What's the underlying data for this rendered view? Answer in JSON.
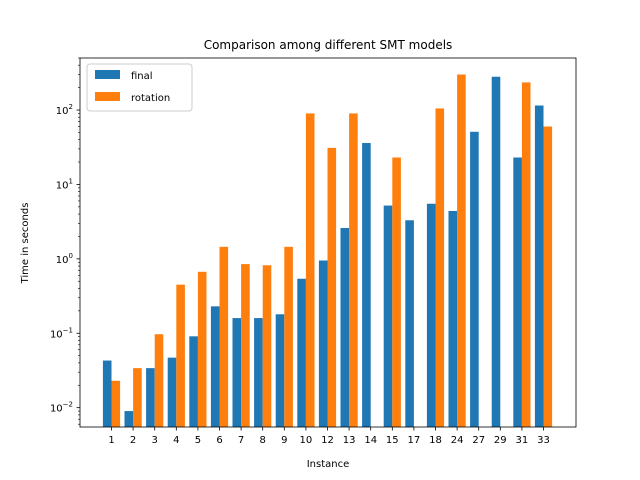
{
  "chart_data": {
    "type": "bar",
    "title": "Comparison among different SMT models",
    "xlabel": "Instance",
    "ylabel": "Time in seconds",
    "yscale": "log",
    "ylim": [
      0.0055,
      500
    ],
    "ytick_values": [
      0.01,
      0.1,
      1,
      10,
      100
    ],
    "ytick_labels": [
      {
        "base": "10",
        "exp": "−2"
      },
      {
        "base": "10",
        "exp": "−1"
      },
      {
        "base": "10",
        "exp": "0"
      },
      {
        "base": "10",
        "exp": "1"
      },
      {
        "base": "10",
        "exp": "2"
      }
    ],
    "legend_position": "upper-left",
    "categories": [
      "1",
      "2",
      "3",
      "4",
      "5",
      "6",
      "7",
      "8",
      "9",
      "10",
      "12",
      "13",
      "14",
      "15",
      "17",
      "18",
      "24",
      "27",
      "29",
      "31",
      "33"
    ],
    "series": [
      {
        "name": "final",
        "color": "#1f77b4",
        "values": [
          0.043,
          0.009,
          0.034,
          0.047,
          0.091,
          0.23,
          0.16,
          0.16,
          0.18,
          0.54,
          0.95,
          2.6,
          36,
          5.2,
          3.3,
          5.5,
          4.4,
          51,
          280,
          23,
          115
        ]
      },
      {
        "name": "rotation",
        "color": "#ff7f0e",
        "values": [
          0.023,
          0.034,
          0.097,
          0.45,
          0.67,
          1.45,
          0.85,
          0.82,
          1.45,
          90,
          31,
          90,
          null,
          23,
          null,
          105,
          300,
          null,
          null,
          235,
          60
        ]
      }
    ]
  }
}
